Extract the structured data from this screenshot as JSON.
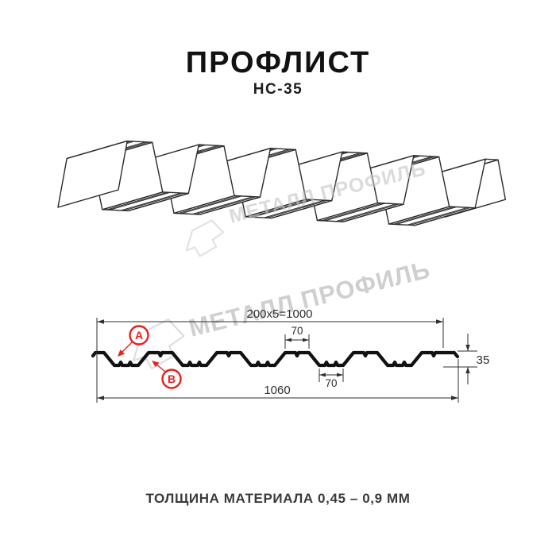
{
  "header": {
    "title": "ПРОФЛИСТ",
    "subtitle": "НС-35"
  },
  "watermark": {
    "text": "МЕТАЛЛ ПРОФИЛЬ",
    "color": "#c4c4c4"
  },
  "cross_section": {
    "dim_working_width": "200x5=1000",
    "dim_top_flange": "70",
    "dim_bottom_flange": "70",
    "dim_total_width": "1060",
    "dim_height": "35",
    "label_a": "А",
    "label_b": "В",
    "accent_color": "#e42320",
    "line_color": "#111111"
  },
  "footer": {
    "thickness_note": "ТОЛЩИНА МАТЕРИАЛА 0,45 – 0,9 ММ"
  }
}
